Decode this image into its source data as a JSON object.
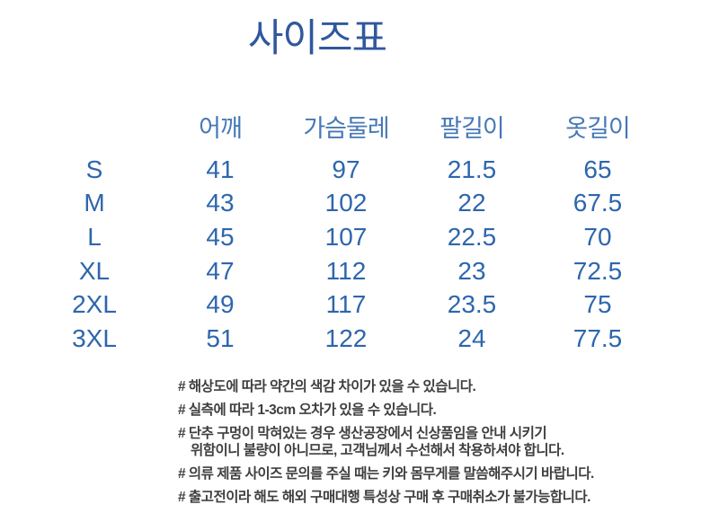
{
  "title": "사이즈표",
  "table": {
    "columns": [
      "어깨",
      "가슴둘레",
      "팔길이",
      "옷길이"
    ],
    "rows": [
      {
        "size": "S",
        "values": [
          "41",
          "97",
          "21.5",
          "65"
        ]
      },
      {
        "size": "M",
        "values": [
          "43",
          "102",
          "22",
          "67.5"
        ]
      },
      {
        "size": "L",
        "values": [
          "45",
          "107",
          "22.5",
          "70"
        ]
      },
      {
        "size": "XL",
        "values": [
          "47",
          "112",
          "23",
          "72.5"
        ]
      },
      {
        "size": "2XL",
        "values": [
          "49",
          "117",
          "23.5",
          "75"
        ]
      },
      {
        "size": "3XL",
        "values": [
          "51",
          "122",
          "24",
          "77.5"
        ]
      }
    ]
  },
  "notes": [
    {
      "text": "# 해상도에 따라 약간의 색감 차이가 있을 수 있습니다."
    },
    {
      "text": "# 실측에 따라 1-3cm 오차가 있을 수 있습니다."
    },
    {
      "text": "# 단추 구멍이 막혀있는 경우 생산공장에서 신상품임을 안내 시키기"
    },
    {
      "text": "위함이니 불량이 아니므로, 고객님께서 수선해서 착용하셔야 합니다.",
      "continuation": true
    },
    {
      "text": "# 의류 제품 사이즈 문의를 주실 때는 키와 몸무게를 말씀해주시기 바랍니다."
    },
    {
      "text": "# 출고전이라 해도 해외 구매대행 특성상 구매 후 구매취소가 불가능합니다."
    }
  ],
  "colors": {
    "background": "#ffffff",
    "title": "#30589c",
    "header": "#4678b6",
    "value": "#2d66ad",
    "note": "#3f3f3f"
  }
}
